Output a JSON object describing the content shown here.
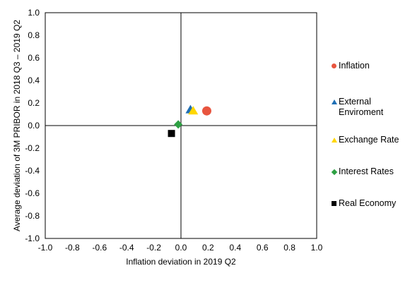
{
  "chart_data": {
    "type": "scatter",
    "xlabel": "Inflation deviation in 2019 Q2",
    "ylabel": "Average deviation of 3M PRIBOR in 2018 Q3 – 2019 Q2",
    "xlim": [
      -1.0,
      1.0
    ],
    "ylim": [
      -1.0,
      1.0
    ],
    "xticks": [
      "-1.0",
      "-0.8",
      "-0.6",
      "-0.4",
      "-0.2",
      "0.0",
      "0.2",
      "0.4",
      "0.6",
      "0.8",
      "1.0"
    ],
    "yticks": [
      "1.0",
      "0.8",
      "0.6",
      "0.4",
      "0.2",
      "0.0",
      "-0.2",
      "-0.4",
      "-0.6",
      "-0.8",
      "-1.0"
    ],
    "grid": false,
    "legend_position": "right",
    "series": [
      {
        "name": "Inflation",
        "marker": "circle",
        "color": "#E8553F",
        "points": [
          {
            "x": 0.19,
            "y": 0.13
          }
        ]
      },
      {
        "name": "External Enviroment",
        "marker": "triangle",
        "color": "#1F6FB5",
        "points": [
          {
            "x": 0.07,
            "y": 0.14
          }
        ]
      },
      {
        "name": "Exchange Rate",
        "marker": "triangle",
        "color": "#FFD700",
        "points": [
          {
            "x": 0.09,
            "y": 0.13
          }
        ]
      },
      {
        "name": "Interest Rates",
        "marker": "diamond",
        "color": "#2EA043",
        "points": [
          {
            "x": -0.02,
            "y": 0.01
          }
        ]
      },
      {
        "name": "Real Economy",
        "marker": "square",
        "color": "#000000",
        "points": [
          {
            "x": -0.07,
            "y": -0.07
          }
        ]
      }
    ]
  },
  "legend": {
    "items": [
      {
        "label": "Inflation"
      },
      {
        "label": "External Enviroment"
      },
      {
        "label": "Exchange Rate"
      },
      {
        "label": "Interest Rates"
      },
      {
        "label": "Real Economy"
      }
    ]
  }
}
